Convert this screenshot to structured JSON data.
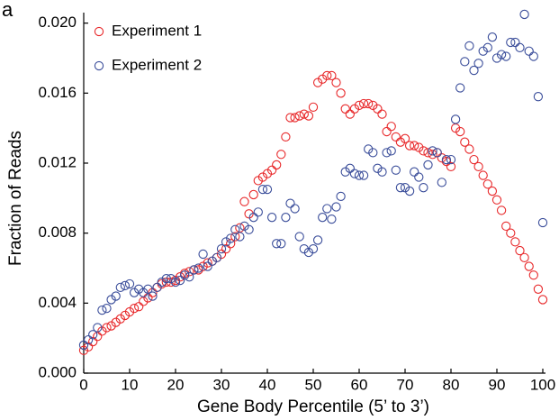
{
  "panel_label": "a",
  "chart_data": {
    "type": "scatter",
    "xlabel": "Gene Body Percentile (5’ to 3’)",
    "ylabel": "Fraction of Reads",
    "x": [
      0,
      1,
      2,
      3,
      4,
      5,
      6,
      7,
      8,
      9,
      10,
      11,
      12,
      13,
      14,
      15,
      16,
      17,
      18,
      19,
      20,
      21,
      22,
      23,
      24,
      25,
      26,
      27,
      28,
      29,
      30,
      31,
      32,
      33,
      34,
      35,
      36,
      37,
      38,
      39,
      40,
      41,
      42,
      43,
      44,
      45,
      46,
      47,
      48,
      49,
      50,
      51,
      52,
      53,
      54,
      55,
      56,
      57,
      58,
      59,
      60,
      61,
      62,
      63,
      64,
      65,
      66,
      67,
      68,
      69,
      70,
      71,
      72,
      73,
      74,
      75,
      76,
      77,
      78,
      79,
      80,
      81,
      82,
      83,
      84,
      85,
      86,
      87,
      88,
      89,
      90,
      91,
      92,
      93,
      94,
      95,
      96,
      97,
      98,
      99,
      100
    ],
    "series": [
      {
        "name": "Experiment 1",
        "color": "#e8292b",
        "values": [
          0.0013,
          0.0015,
          0.0018,
          0.0021,
          0.0024,
          0.0026,
          0.0027,
          0.0029,
          0.0031,
          0.0033,
          0.0035,
          0.0037,
          0.0038,
          0.0041,
          0.0043,
          0.0046,
          0.0049,
          0.0051,
          0.0052,
          0.0052,
          0.0053,
          0.0055,
          0.0057,
          0.0058,
          0.0059,
          0.0059,
          0.0061,
          0.0063,
          0.0064,
          0.0066,
          0.0068,
          0.0071,
          0.0074,
          0.0078,
          0.0083,
          0.0098,
          0.0091,
          0.0102,
          0.011,
          0.0112,
          0.0114,
          0.0116,
          0.0119,
          0.0125,
          0.0135,
          0.0146,
          0.0146,
          0.0147,
          0.0148,
          0.0147,
          0.0152,
          0.0166,
          0.0168,
          0.017,
          0.017,
          0.0166,
          0.016,
          0.0151,
          0.0148,
          0.0151,
          0.0153,
          0.0154,
          0.0154,
          0.0153,
          0.0151,
          0.0148,
          0.0138,
          0.0141,
          0.0135,
          0.0132,
          0.0134,
          0.013,
          0.013,
          0.0129,
          0.0127,
          0.0126,
          0.0125,
          0.0126,
          0.0123,
          0.0121,
          0.0118,
          0.014,
          0.0138,
          0.0132,
          0.0128,
          0.0122,
          0.0118,
          0.0113,
          0.0108,
          0.0104,
          0.0099,
          0.0093,
          0.0084,
          0.008,
          0.0075,
          0.007,
          0.0066,
          0.0061,
          0.0056,
          0.0048,
          0.0042
        ]
      },
      {
        "name": "Experiment 2",
        "color": "#3a4d9a",
        "values": [
          0.0016,
          0.0019,
          0.0022,
          0.0026,
          0.0036,
          0.0037,
          0.0042,
          0.0044,
          0.0049,
          0.005,
          0.0051,
          0.0046,
          0.0048,
          0.0046,
          0.0048,
          0.0044,
          0.0049,
          0.0052,
          0.0054,
          0.0054,
          0.0052,
          0.0053,
          0.0056,
          0.0055,
          0.0059,
          0.006,
          0.0068,
          0.0061,
          0.0064,
          0.0066,
          0.0071,
          0.0075,
          0.0077,
          0.0082,
          0.0078,
          0.0084,
          0.0082,
          0.0089,
          0.0092,
          0.0105,
          0.0105,
          0.0089,
          0.0074,
          0.0074,
          0.0089,
          0.0097,
          0.0094,
          0.0078,
          0.0071,
          0.0069,
          0.0071,
          0.0076,
          0.0089,
          0.0094,
          0.0088,
          0.0095,
          0.0101,
          0.0115,
          0.0117,
          0.0114,
          0.0113,
          0.0113,
          0.0128,
          0.0126,
          0.0117,
          0.0115,
          0.0126,
          0.0127,
          0.0116,
          0.0106,
          0.0106,
          0.0104,
          0.0115,
          0.0112,
          0.0106,
          0.0119,
          0.0127,
          0.0126,
          0.0109,
          0.0122,
          0.0122,
          0.0145,
          0.0163,
          0.0178,
          0.0187,
          0.0173,
          0.0177,
          0.0184,
          0.0186,
          0.0192,
          0.018,
          0.0182,
          0.0181,
          0.0189,
          0.0189,
          0.0186,
          0.0205,
          0.0184,
          0.0181,
          0.0158,
          0.0086
        ]
      }
    ],
    "xlim": [
      0,
      100
    ],
    "xticks": [
      0,
      10,
      20,
      30,
      40,
      50,
      60,
      70,
      80,
      90,
      100
    ],
    "ylim": [
      0,
      0.0206
    ],
    "yticks": [
      {
        "value": 0,
        "label": "0.000"
      },
      {
        "value": 0.004,
        "label": "0.004"
      },
      {
        "value": 0.008,
        "label": "0.008"
      },
      {
        "value": 0.012,
        "label": "0.012"
      },
      {
        "value": 0.016,
        "label": "0.016"
      },
      {
        "value": 0.02,
        "label": "0.020"
      }
    ],
    "legend": "upper left",
    "grid": false
  }
}
